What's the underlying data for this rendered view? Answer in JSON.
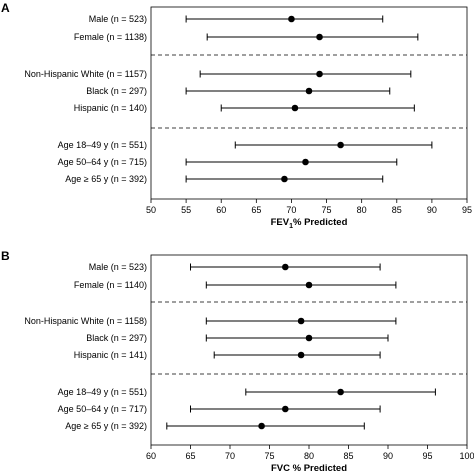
{
  "chart_data": [
    {
      "type": "scatter",
      "panel_label": "A",
      "xlabel": "FEV1% Predicted",
      "xlabel_main": "FEV",
      "xlabel_sub": "1",
      "xlabel_rest": "% Predicted",
      "xlim": [
        50,
        95
      ],
      "xticks": [
        50,
        55,
        60,
        65,
        70,
        75,
        80,
        85,
        90,
        95
      ],
      "groups": [
        [
          {
            "label": "Male (n = 523)",
            "estimate": 70,
            "lower": 55,
            "upper": 83
          },
          {
            "label": "Female (n = 1138)",
            "estimate": 74,
            "lower": 58,
            "upper": 88
          }
        ],
        [
          {
            "label": "Non-Hispanic White (n = 1157)",
            "estimate": 74,
            "lower": 57,
            "upper": 87
          },
          {
            "label": "Black (n = 297)",
            "estimate": 72.5,
            "lower": 55,
            "upper": 84
          },
          {
            "label": "Hispanic (n = 140)",
            "estimate": 70.5,
            "lower": 60,
            "upper": 87.5
          }
        ],
        [
          {
            "label": "Age 18–49 y (n = 551)",
            "estimate": 77,
            "lower": 62,
            "upper": 90
          },
          {
            "label": "Age 50–64 y (n = 715)",
            "estimate": 72,
            "lower": 55,
            "upper": 85
          },
          {
            "label": "Age ≥ 65 y (n = 392)",
            "estimate": 69,
            "lower": 55,
            "upper": 83
          }
        ]
      ]
    },
    {
      "type": "scatter",
      "panel_label": "B",
      "xlabel": "FVC % Predicted",
      "xlabel_main": "FVC % Predicted",
      "xlabel_sub": "",
      "xlabel_rest": "",
      "xlim": [
        60,
        100
      ],
      "xticks": [
        60,
        65,
        70,
        75,
        80,
        85,
        90,
        95,
        100
      ],
      "groups": [
        [
          {
            "label": "Male (n = 523)",
            "estimate": 77,
            "lower": 65,
            "upper": 89
          },
          {
            "label": "Female (n = 1140)",
            "estimate": 80,
            "lower": 67,
            "upper": 91
          }
        ],
        [
          {
            "label": "Non-Hispanic White (n = 1158)",
            "estimate": 79,
            "lower": 67,
            "upper": 91
          },
          {
            "label": "Black (n = 297)",
            "estimate": 80,
            "lower": 67,
            "upper": 90
          },
          {
            "label": "Hispanic (n = 141)",
            "estimate": 79,
            "lower": 68,
            "upper": 89
          }
        ],
        [
          {
            "label": "Age 18–49 y (n = 551)",
            "estimate": 84,
            "lower": 72,
            "upper": 96
          },
          {
            "label": "Age 50–64 y (n = 717)",
            "estimate": 77,
            "lower": 65,
            "upper": 89
          },
          {
            "label": "Age ≥ 65 y (n = 392)",
            "estimate": 74,
            "lower": 62,
            "upper": 87
          }
        ]
      ]
    }
  ]
}
